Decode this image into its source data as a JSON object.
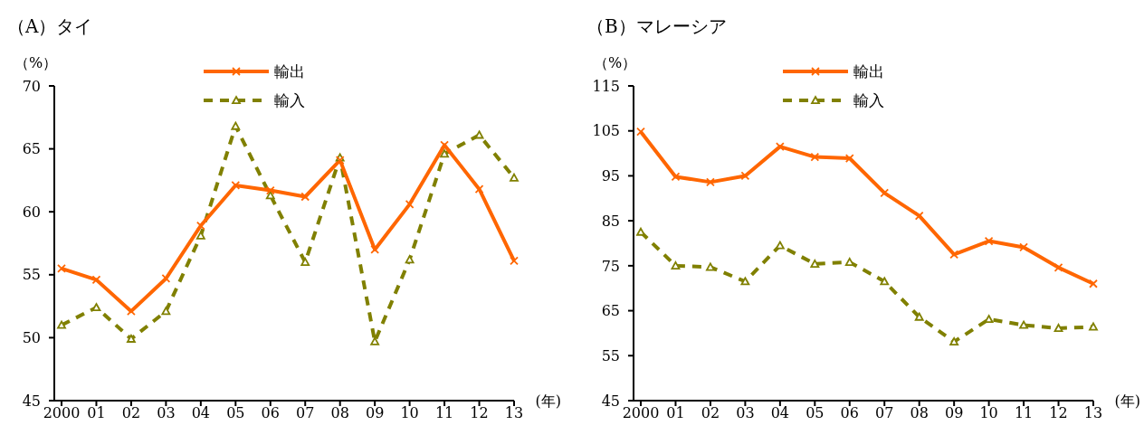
{
  "chart_data": [
    {
      "type": "line",
      "title": "（A）タイ",
      "ylabel": "（%）",
      "xlabel": "(年)",
      "categories": [
        "2000",
        "01",
        "02",
        "03",
        "04",
        "05",
        "06",
        "07",
        "08",
        "09",
        "10",
        "11",
        "12",
        "13"
      ],
      "ylim": [
        45,
        70
      ],
      "yticks": [
        45,
        50,
        55,
        60,
        65,
        70
      ],
      "grid": false,
      "legend": "top",
      "series": [
        {
          "name": "輸出",
          "color": "#ff6600",
          "marker": "cross",
          "line_style": "solid",
          "values": [
            55.5,
            54.6,
            52.1,
            54.7,
            58.9,
            62.1,
            61.7,
            61.2,
            64.1,
            57.0,
            60.6,
            65.3,
            61.8,
            56.1
          ]
        },
        {
          "name": "輸入",
          "color": "#808000",
          "marker": "triangle",
          "line_style": "dashed",
          "values": [
            51.0,
            52.4,
            49.9,
            52.1,
            58.1,
            66.8,
            61.3,
            56.0,
            64.3,
            49.7,
            56.2,
            64.6,
            66.1,
            62.7
          ]
        }
      ]
    },
    {
      "type": "line",
      "title": "（B）マレーシア",
      "ylabel": "（%）",
      "xlabel": "(年)",
      "categories": [
        "2000",
        "01",
        "02",
        "03",
        "04",
        "05",
        "06",
        "07",
        "08",
        "09",
        "10",
        "11",
        "12",
        "13"
      ],
      "ylim": [
        45,
        115
      ],
      "yticks": [
        45,
        55,
        65,
        75,
        85,
        95,
        105,
        115
      ],
      "grid": false,
      "legend": "top",
      "series": [
        {
          "name": "輸出",
          "color": "#ff6600",
          "marker": "cross",
          "line_style": "solid",
          "values": [
            104.8,
            94.8,
            93.6,
            95.0,
            101.5,
            99.2,
            98.9,
            91.2,
            86.1,
            77.5,
            80.5,
            79.1,
            74.6,
            71.0
          ]
        },
        {
          "name": "輸入",
          "color": "#808000",
          "marker": "triangle",
          "line_style": "dashed",
          "values": [
            82.5,
            75.0,
            74.7,
            71.5,
            79.5,
            75.4,
            75.8,
            71.5,
            63.6,
            58.1,
            63.1,
            61.8,
            61.1,
            61.4
          ]
        }
      ]
    }
  ]
}
